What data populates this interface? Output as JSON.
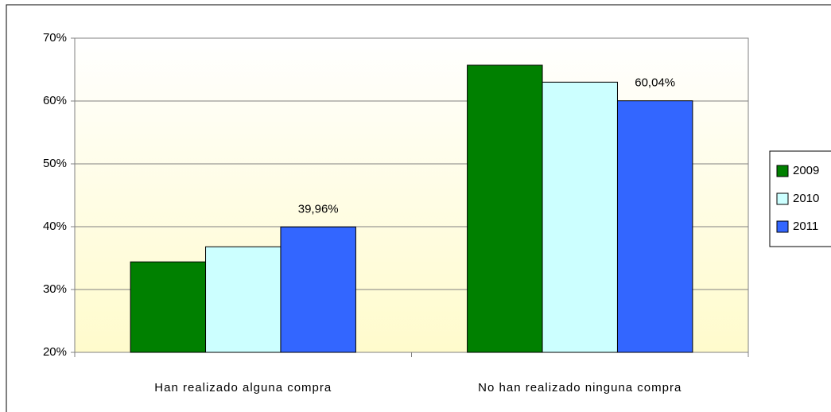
{
  "chart_data": {
    "type": "bar",
    "categories": [
      "Han realizado alguna compra",
      "No han realizado ninguna compra"
    ],
    "series": [
      {
        "name": "2009",
        "color": "#008000",
        "values": [
          34.4,
          65.7
        ]
      },
      {
        "name": "2010",
        "color": "#ccffff",
        "values": [
          36.8,
          63.0
        ]
      },
      {
        "name": "2011",
        "color": "#3366ff",
        "values": [
          39.96,
          60.04
        ],
        "value_labels": [
          "39,96%",
          "60,04%"
        ]
      }
    ],
    "ylim": [
      20,
      70
    ],
    "yticks": [
      {
        "value": 20,
        "label": "20%"
      },
      {
        "value": 30,
        "label": "30%"
      },
      {
        "value": 40,
        "label": "40%"
      },
      {
        "value": 50,
        "label": "50%"
      },
      {
        "value": 60,
        "label": "60%"
      },
      {
        "value": 70,
        "label": "70%"
      }
    ],
    "grid": true,
    "legend": "right"
  }
}
